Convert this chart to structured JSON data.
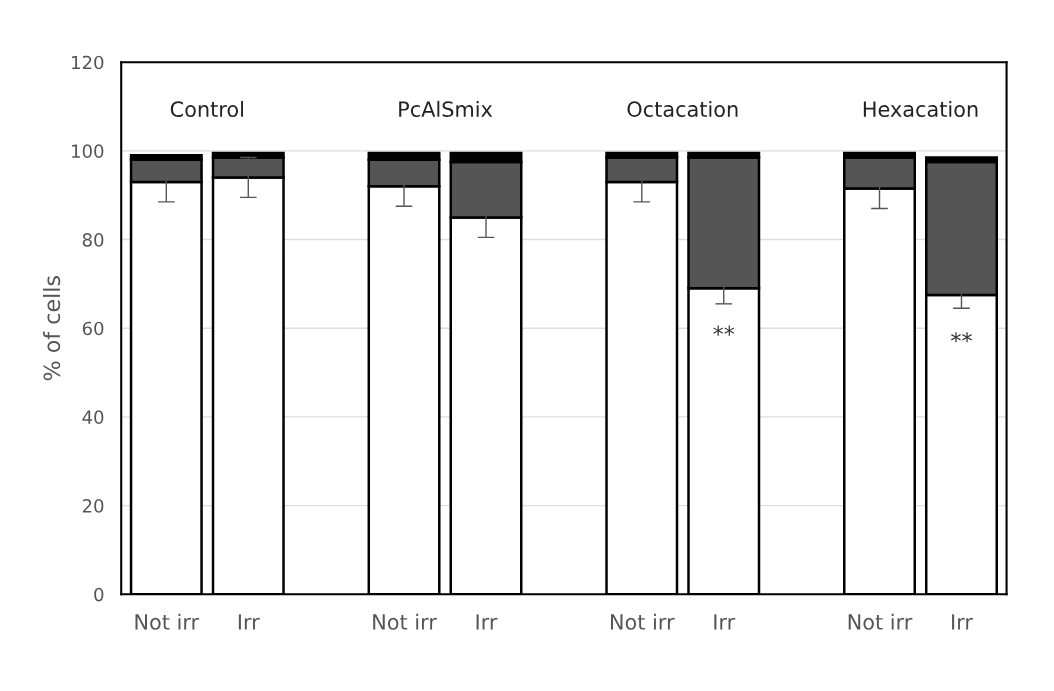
{
  "chart_data": {
    "type": "bar",
    "stacked": true,
    "ylabel": "% of cells",
    "categories": [
      "Not irr",
      "Irr",
      "Not irr",
      "Irr",
      "Not irr",
      "Irr",
      "Not irr",
      "Irr"
    ],
    "series": [
      {
        "color": "#ffffff",
        "values": [
          93,
          94,
          92,
          85,
          93,
          69,
          91.5,
          67.5
        ],
        "errors": [
          4.5,
          4.5,
          4.5,
          4.5,
          4.5,
          3.5,
          4.5,
          3
        ],
        "value_labels": [
          null,
          null,
          null,
          null,
          null,
          "**",
          null,
          "**"
        ]
      },
      {
        "color": "#555555",
        "values": [
          5,
          4.5,
          6,
          12.5,
          5.5,
          29.5,
          7,
          30
        ]
      },
      {
        "color": "#000000",
        "values": [
          1,
          1,
          1.5,
          2,
          1,
          1,
          1,
          1
        ]
      }
    ],
    "annotations": [
      "Control",
      "PcAlSmix",
      "Octacation",
      "Hexacation"
    ],
    "ylim": [
      0,
      120
    ],
    "yticks": [
      0,
      20,
      40,
      60,
      80,
      100,
      120
    ],
    "grid": "y"
  }
}
